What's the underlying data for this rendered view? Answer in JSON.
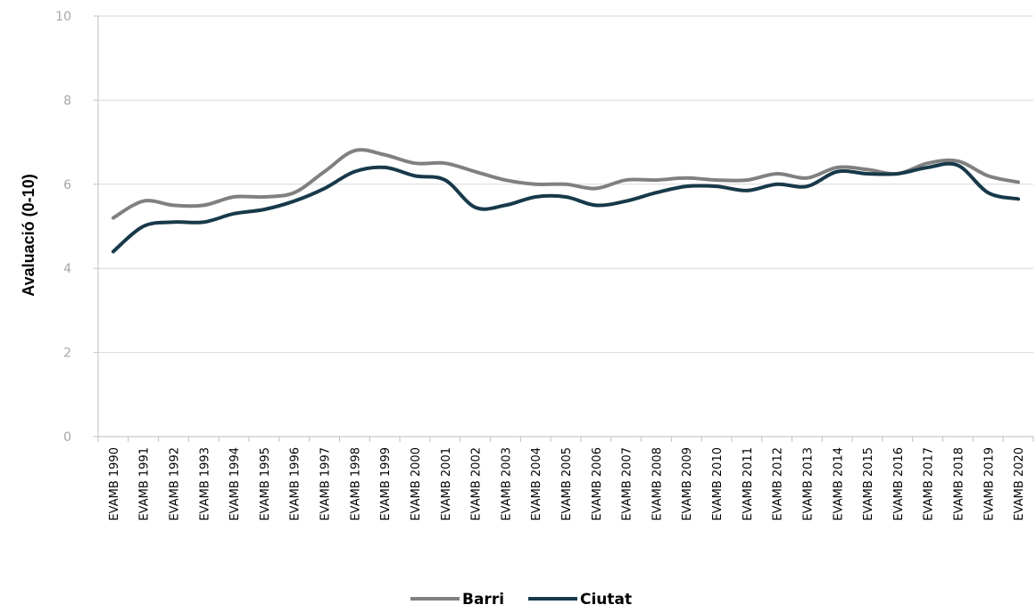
{
  "chart_data": {
    "type": "line",
    "title": "",
    "xlabel": "",
    "ylabel": "Avaluació (0-10)",
    "ylim": [
      0,
      10
    ],
    "yticks": [
      0,
      2,
      4,
      6,
      8,
      10
    ],
    "grid": "horizontal",
    "legend": "bottom-center",
    "categories": [
      "EVAMB 1990",
      "EVAMB 1991",
      "EVAMB 1992",
      "EVAMB 1993",
      "EVAMB 1994",
      "EVAMB 1995",
      "EVAMB 1996",
      "EVAMB 1997",
      "EVAMB 1998",
      "EVAMB 1999",
      "EVAMB 2000",
      "EVAMB 2001",
      "EVAMB 2002",
      "EVAMB 2003",
      "EVAMB 2004",
      "EVAMB 2005",
      "EVAMB 2006",
      "EVAMB 2007",
      "EVAMB 2008",
      "EVAMB 2009",
      "EVAMB 2010",
      "EVAMB 2011",
      "EVAMB 2012",
      "EVAMB 2013",
      "EVAMB 2014",
      "EVAMB 2015",
      "EVAMB 2016",
      "EVAMB 2017",
      "EVAMB 2018",
      "EVAMB 2019",
      "EVAMB 2020"
    ],
    "series": [
      {
        "name": "Barri",
        "color": "#808080",
        "values": [
          5.2,
          5.6,
          5.5,
          5.5,
          5.7,
          5.7,
          5.8,
          6.3,
          6.8,
          6.7,
          6.5,
          6.5,
          6.3,
          6.1,
          6.0,
          6.0,
          5.9,
          6.1,
          6.1,
          6.15,
          6.1,
          6.1,
          6.25,
          6.15,
          6.4,
          6.35,
          6.25,
          6.5,
          6.55,
          6.2,
          6.05
        ]
      },
      {
        "name": "Ciutat",
        "color": "#17394a",
        "values": [
          4.4,
          5.0,
          5.1,
          5.1,
          5.3,
          5.4,
          5.6,
          5.9,
          6.3,
          6.4,
          6.2,
          6.1,
          5.45,
          5.5,
          5.7,
          5.7,
          5.5,
          5.6,
          5.8,
          5.95,
          5.95,
          5.85,
          6.0,
          5.95,
          6.3,
          6.25,
          6.25,
          6.4,
          6.45,
          5.8,
          5.65
        ]
      }
    ]
  }
}
